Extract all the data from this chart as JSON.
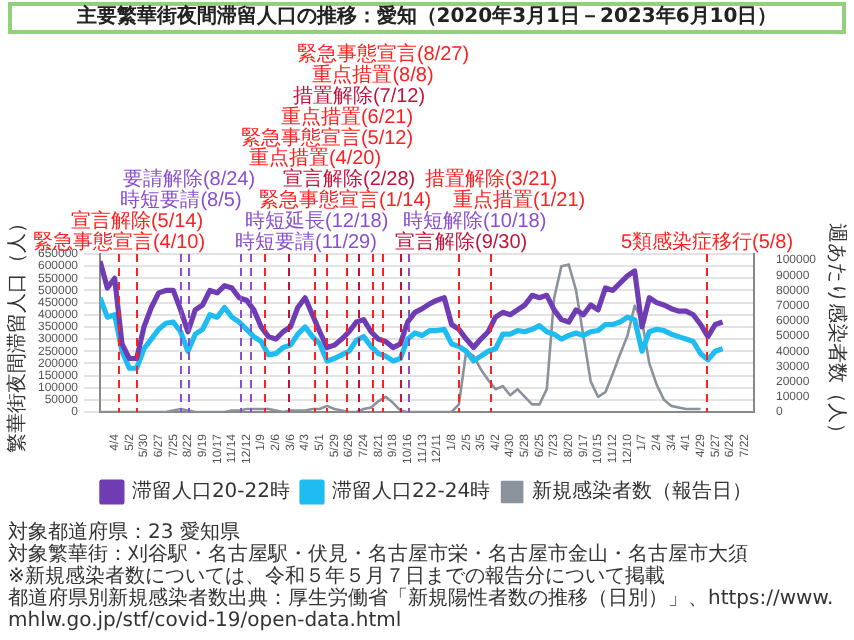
{
  "chart_data": {
    "type": "line",
    "title": "主要繁華街夜間滞留人口の推移：愛知（2020年3月1日－2023年6月10日）",
    "ylabel": "繁華街夜間滞留人口（人）",
    "y2label": "週あたり感染者数（人）",
    "x": [
      "2020-03-07",
      "2020-03-21",
      "2020-04-04",
      "2020-04-18",
      "2020-05-02",
      "2020-05-16",
      "2020-05-30",
      "2020-06-13",
      "2020-06-27",
      "2020-07-11",
      "2020-07-25",
      "2020-08-08",
      "2020-08-22",
      "2020-09-05",
      "2020-09-19",
      "2020-10-03",
      "2020-10-17",
      "2020-10-31",
      "2020-11-14",
      "2020-11-28",
      "2020-12-12",
      "2020-12-26",
      "2021-01-09",
      "2021-01-23",
      "2021-02-06",
      "2021-02-20",
      "2021-03-06",
      "2021-03-20",
      "2021-04-03",
      "2021-04-17",
      "2021-05-01",
      "2021-05-15",
      "2021-05-29",
      "2021-06-12",
      "2021-06-26",
      "2021-07-10",
      "2021-07-24",
      "2021-08-07",
      "2021-08-21",
      "2021-09-04",
      "2021-09-18",
      "2021-10-02",
      "2021-10-16",
      "2021-10-30",
      "2021-11-13",
      "2021-11-27",
      "2021-12-11",
      "2021-12-25",
      "2022-01-08",
      "2022-01-22",
      "2022-02-05",
      "2022-02-19",
      "2022-03-05",
      "2022-03-19",
      "2022-04-02",
      "2022-04-16",
      "2022-04-30",
      "2022-05-14",
      "2022-05-28",
      "2022-06-11",
      "2022-06-25",
      "2022-07-09",
      "2022-07-23",
      "2022-08-06",
      "2022-08-20",
      "2022-09-03",
      "2022-09-17",
      "2022-10-01",
      "2022-10-15",
      "2022-10-29",
      "2022-11-12",
      "2022-11-26",
      "2022-12-10",
      "2022-12-24",
      "2023-01-07",
      "2023-01-21",
      "2023-02-04",
      "2023-02-18",
      "2023-03-04",
      "2023-03-18",
      "2023-04-01",
      "2023-04-15",
      "2023-04-29",
      "2023-05-13",
      "2023-05-27",
      "2023-06-10"
    ],
    "series": [
      {
        "name": "滞留人口20-22時",
        "type": "line",
        "color": "#6f3cb4",
        "values": [
          620000,
          510000,
          550000,
          280000,
          220000,
          220000,
          350000,
          430000,
          490000,
          500000,
          500000,
          420000,
          330000,
          420000,
          440000,
          500000,
          490000,
          520000,
          510000,
          470000,
          460000,
          420000,
          350000,
          310000,
          300000,
          330000,
          350000,
          430000,
          470000,
          400000,
          330000,
          265000,
          275000,
          300000,
          330000,
          370000,
          380000,
          330000,
          300000,
          290000,
          265000,
          280000,
          370000,
          410000,
          425000,
          445000,
          460000,
          470000,
          360000,
          340000,
          300000,
          265000,
          300000,
          330000,
          390000,
          410000,
          400000,
          420000,
          440000,
          480000,
          470000,
          480000,
          420000,
          380000,
          370000,
          420000,
          400000,
          440000,
          420000,
          510000,
          500000,
          530000,
          560000,
          580000,
          350000,
          470000,
          450000,
          440000,
          425000,
          415000,
          415000,
          400000,
          360000,
          310000,
          360000,
          370000
        ]
      },
      {
        "name": "滞留人口22-24時",
        "type": "line",
        "color": "#1ebcf0",
        "values": [
          470000,
          390000,
          400000,
          250000,
          180000,
          180000,
          260000,
          300000,
          340000,
          365000,
          370000,
          330000,
          250000,
          320000,
          340000,
          400000,
          390000,
          430000,
          390000,
          370000,
          340000,
          310000,
          290000,
          235000,
          240000,
          265000,
          275000,
          320000,
          350000,
          310000,
          280000,
          210000,
          220000,
          235000,
          250000,
          295000,
          310000,
          270000,
          240000,
          230000,
          210000,
          220000,
          300000,
          325000,
          315000,
          335000,
          335000,
          340000,
          280000,
          270000,
          250000,
          210000,
          230000,
          250000,
          260000,
          320000,
          320000,
          335000,
          330000,
          340000,
          355000,
          330000,
          320000,
          300000,
          315000,
          325000,
          315000,
          330000,
          335000,
          360000,
          360000,
          370000,
          390000,
          380000,
          250000,
          330000,
          340000,
          335000,
          320000,
          310000,
          300000,
          290000,
          240000,
          215000,
          250000,
          260000
        ]
      },
      {
        "name": "新規感染者数（報告日）",
        "type": "line",
        "axis": "y2",
        "color": "#8a939b",
        "values": [
          0,
          0,
          0,
          0,
          0,
          0,
          0,
          0,
          0,
          0,
          1000,
          2000,
          1000,
          0,
          0,
          0,
          0,
          0,
          1000,
          1000,
          2000,
          2000,
          2000,
          2000,
          1000,
          0,
          1000,
          1000,
          1000,
          2000,
          2000,
          4000,
          2000,
          1000,
          0,
          0,
          2000,
          3000,
          7000,
          10000,
          6000,
          1000,
          0,
          0,
          0,
          0,
          0,
          0,
          0,
          5000,
          40000,
          37000,
          28000,
          21000,
          15000,
          17000,
          11000,
          15000,
          10000,
          5000,
          5000,
          15000,
          75000,
          96000,
          97000,
          80000,
          50000,
          20000,
          10000,
          13000,
          25000,
          38000,
          50000,
          70000,
          60000,
          32000,
          18000,
          8000,
          4000,
          3000,
          2000,
          2000,
          2000,
          null,
          null,
          null
        ]
      }
    ],
    "xlim": [
      "2020-03-07",
      "2023-08-09"
    ],
    "xticks": [
      {
        "value": "2020-04-04",
        "label": "4/4"
      },
      {
        "value": "2020-05-02",
        "label": "5/2"
      },
      {
        "value": "2020-05-30",
        "label": "5/30"
      },
      {
        "value": "2020-06-27",
        "label": "6/27"
      },
      {
        "value": "2020-07-25",
        "label": "7/25"
      },
      {
        "value": "2020-08-22",
        "label": "8/22"
      },
      {
        "value": "2020-09-19",
        "label": "9/19"
      },
      {
        "value": "2020-10-17",
        "label": "10/17"
      },
      {
        "value": "2020-11-14",
        "label": "11/14"
      },
      {
        "value": "2020-12-12",
        "label": "12/12"
      },
      {
        "value": "2021-01-09",
        "label": "1/9"
      },
      {
        "value": "2021-02-06",
        "label": "2/6"
      },
      {
        "value": "2021-03-06",
        "label": "3/6"
      },
      {
        "value": "2021-04-03",
        "label": "4/3"
      },
      {
        "value": "2021-05-01",
        "label": "5/1"
      },
      {
        "value": "2021-05-29",
        "label": "5/29"
      },
      {
        "value": "2021-06-26",
        "label": "6/26"
      },
      {
        "value": "2021-07-24",
        "label": "7/24"
      },
      {
        "value": "2021-08-21",
        "label": "8/21"
      },
      {
        "value": "2021-09-18",
        "label": "9/18"
      },
      {
        "value": "2021-10-16",
        "label": "10/16"
      },
      {
        "value": "2021-11-13",
        "label": "11/13"
      },
      {
        "value": "2021-12-11",
        "label": "12/11"
      },
      {
        "value": "2022-01-08",
        "label": "1/8"
      },
      {
        "value": "2022-02-05",
        "label": "2/5"
      },
      {
        "value": "2022-03-05",
        "label": "3/5"
      },
      {
        "value": "2022-04-02",
        "label": "4/2"
      },
      {
        "value": "2022-04-30",
        "label": "4/30"
      },
      {
        "value": "2022-05-28",
        "label": "5/28"
      },
      {
        "value": "2022-06-25",
        "label": "6/25"
      },
      {
        "value": "2022-07-23",
        "label": "7/23"
      },
      {
        "value": "2022-08-20",
        "label": "8/20"
      },
      {
        "value": "2022-09-17",
        "label": "9/17"
      },
      {
        "value": "2022-10-15",
        "label": "10/15"
      },
      {
        "value": "2022-11-12",
        "label": "11/12"
      },
      {
        "value": "2022-12-10",
        "label": "12/10"
      },
      {
        "value": "2023-01-07",
        "label": "1/7"
      },
      {
        "value": "2023-02-04",
        "label": "2/4"
      },
      {
        "value": "2023-03-04",
        "label": "3/4"
      },
      {
        "value": "2023-04-01",
        "label": "4/1"
      },
      {
        "value": "2023-04-29",
        "label": "4/29"
      },
      {
        "value": "2023-05-27",
        "label": "5/27"
      },
      {
        "value": "2023-06-24",
        "label": "6/24"
      },
      {
        "value": "2023-07-22",
        "label": "7/22"
      }
    ],
    "ylim": [
      0,
      650000
    ],
    "yticks": [
      0,
      50000,
      100000,
      150000,
      200000,
      250000,
      300000,
      350000,
      400000,
      450000,
      500000,
      550000,
      600000,
      650000
    ],
    "y2lim": [
      0,
      104000
    ],
    "y2ticks": [
      0,
      10000,
      20000,
      30000,
      40000,
      50000,
      60000,
      70000,
      80000,
      90000,
      100000
    ],
    "grid": "y",
    "legend": "bottom",
    "line_style": "solid",
    "ref_lines": [
      {
        "axis": "x",
        "value": "2020-04-10",
        "label": "緊急事態宣言(4/10)",
        "color": "#ff2020",
        "line_style": "dashed"
      },
      {
        "axis": "x",
        "value": "2020-05-14",
        "label": "宣言解除(5/14)",
        "color": "#ff2020",
        "line_style": "dashed"
      },
      {
        "axis": "x",
        "value": "2020-08-05",
        "label": "時短要請(8/5)",
        "color": "#8a4fd0",
        "line_style": "dashed"
      },
      {
        "axis": "x",
        "value": "2020-08-24",
        "label": "要請解除(8/24)",
        "color": "#8a4fd0",
        "line_style": "dashed"
      },
      {
        "axis": "x",
        "value": "2020-11-29",
        "label": "時短要請(11/29)",
        "color": "#8a4fd0",
        "line_style": "dashed"
      },
      {
        "axis": "x",
        "value": "2020-12-18",
        "label": "時短延長(12/18)",
        "color": "#8a4fd0",
        "line_style": "dashed"
      },
      {
        "axis": "x",
        "value": "2021-01-14",
        "label": "緊急事態宣言(1/14)",
        "color": "#ff2020",
        "line_style": "dashed"
      },
      {
        "axis": "x",
        "value": "2021-02-28",
        "label": "宣言解除(2/28)",
        "color": "#c0143c",
        "line_style": "dashed"
      },
      {
        "axis": "x",
        "value": "2021-04-20",
        "label": "重点措置(4/20)",
        "color": "#ff2020",
        "line_style": "dashed"
      },
      {
        "axis": "x",
        "value": "2021-05-12",
        "label": "緊急事態宣言(5/12)",
        "color": "#ff2020",
        "line_style": "dashed"
      },
      {
        "axis": "x",
        "value": "2021-06-21",
        "label": "重点措置(6/21)",
        "color": "#ff2020",
        "line_style": "dashed"
      },
      {
        "axis": "x",
        "value": "2021-07-12",
        "label": "措置解除(7/12)",
        "color": "#c0143c",
        "line_style": "dashed"
      },
      {
        "axis": "x",
        "value": "2021-08-08",
        "label": "重点措置(8/8)",
        "color": "#ff2020",
        "line_style": "dashed"
      },
      {
        "axis": "x",
        "value": "2021-08-27",
        "label": "緊急事態宣言(8/27)",
        "color": "#ff2020",
        "line_style": "dashed"
      },
      {
        "axis": "x",
        "value": "2021-09-30",
        "label": "宣言解除(9/30)",
        "color": "#c0143c",
        "line_style": "dashed"
      },
      {
        "axis": "x",
        "value": "2021-10-18",
        "label": "時短解除(10/18)",
        "color": "#8a4fd0",
        "line_style": "dashed"
      },
      {
        "axis": "x",
        "value": "2022-01-21",
        "label": "重点措置(1/21)",
        "color": "#ff2020",
        "line_style": "dashed"
      },
      {
        "axis": "x",
        "value": "2022-03-21",
        "label": "措置解除(3/21)",
        "color": "#ff2020",
        "line_style": "dashed"
      },
      {
        "axis": "x",
        "value": "2023-05-08",
        "label": "5類感染症移行(5/8)",
        "color": "#ff2020",
        "line_style": "dashed"
      }
    ],
    "annotations": [
      "対象都道府県：23 愛知県",
      "対象繁華街：刈谷駅・名古屋駅・伏見・名古屋市栄・名古屋市金山・名古屋市大須",
      "※新規感染者数については、令和５年５月７日までの報告分について掲載",
      "都道府県別新規感染者数出典：厚生労働省「新規陽性者数の推移（日別）」、https://www.mhlw.go.jp/stf/covid-19/open-data.html"
    ]
  }
}
